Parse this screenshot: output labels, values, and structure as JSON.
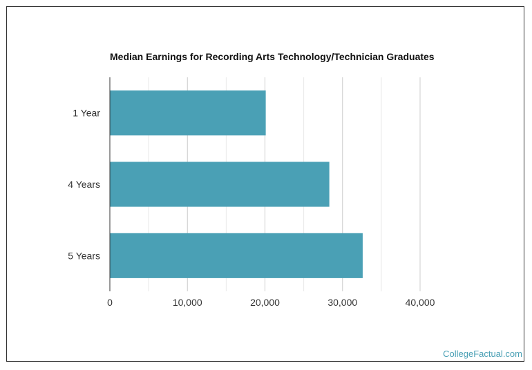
{
  "chart_data": {
    "type": "bar",
    "orientation": "horizontal",
    "title": "Median Earnings for Recording Arts Technology/Technician Graduates",
    "categories": [
      "1 Year",
      "4 Years",
      "5 Years"
    ],
    "values": [
      20100,
      28300,
      32600
    ],
    "xlim": [
      0,
      40000
    ],
    "x_ticks": [
      0,
      10000,
      20000,
      30000,
      40000
    ],
    "x_tick_labels": [
      "0",
      "10,000",
      "20,000",
      "30,000",
      "40,000"
    ],
    "grid": true,
    "bar_color": "#4aa0b5"
  },
  "credit": "CollegeFactual.com"
}
